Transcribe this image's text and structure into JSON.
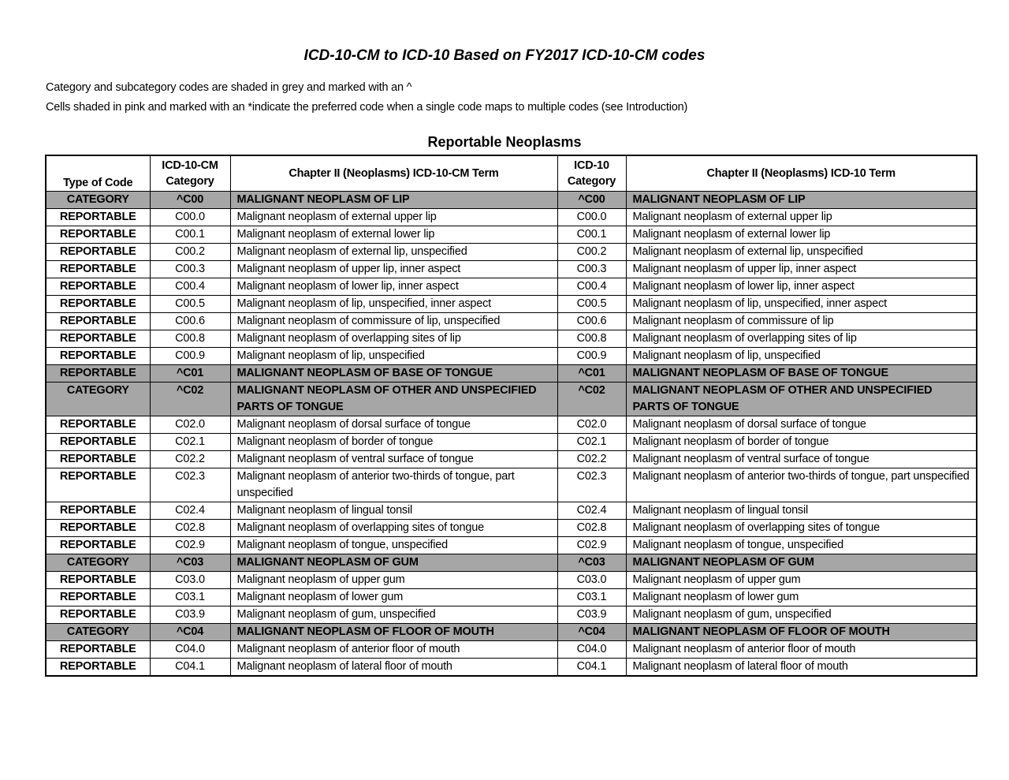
{
  "title": "ICD-10-CM to ICD-10 Based on FY2017 ICD-10-CM codes",
  "notes": [
    "Category and subcategory codes are shaded in grey and marked with an ^",
    "Cells shaded in pink and marked with an *indicate the preferred code when a single code maps to multiple codes (see Introduction)"
  ],
  "table_title": "Reportable Neoplasms",
  "colors": {
    "grey": "#a6a6a6"
  },
  "columns": [
    "Type of Code",
    "ICD-10-CM Category",
    "Chapter II (Neoplasms) ICD-10-CM Term",
    "ICD-10 Category",
    "Chapter II (Neoplasms) ICD-10 Term"
  ],
  "rows": [
    {
      "grey": true,
      "cells": [
        "CATEGORY",
        "^C00",
        "MALIGNANT NEOPLASM OF LIP",
        "^C00",
        "MALIGNANT NEOPLASM OF LIP"
      ]
    },
    {
      "cells": [
        "REPORTABLE",
        "C00.0",
        "Malignant neoplasm of external upper lip",
        "C00.0",
        "Malignant neoplasm of external upper lip"
      ]
    },
    {
      "cells": [
        "REPORTABLE",
        "C00.1",
        "Malignant neoplasm of external lower lip",
        "C00.1",
        "Malignant neoplasm of external lower lip"
      ]
    },
    {
      "cells": [
        "REPORTABLE",
        "C00.2",
        "Malignant neoplasm of external lip, unspecified",
        "C00.2",
        "Malignant neoplasm of external lip, unspecified"
      ]
    },
    {
      "cells": [
        "REPORTABLE",
        "C00.3",
        "Malignant neoplasm of upper lip, inner aspect",
        "C00.3",
        "Malignant neoplasm of upper lip, inner aspect"
      ]
    },
    {
      "cells": [
        "REPORTABLE",
        "C00.4",
        "Malignant neoplasm of lower lip, inner aspect",
        "C00.4",
        "Malignant neoplasm of lower lip, inner aspect"
      ]
    },
    {
      "cells": [
        "REPORTABLE",
        "C00.5",
        "Malignant neoplasm of lip, unspecified, inner aspect",
        "C00.5",
        "Malignant neoplasm of lip, unspecified, inner aspect"
      ]
    },
    {
      "cells": [
        "REPORTABLE",
        "C00.6",
        "Malignant neoplasm of commissure of lip, unspecified",
        "C00.6",
        "Malignant neoplasm of commissure of lip"
      ]
    },
    {
      "cells": [
        "REPORTABLE",
        "C00.8",
        "Malignant neoplasm of overlapping sites of lip",
        "C00.8",
        "Malignant neoplasm of overlapping sites of lip"
      ]
    },
    {
      "cells": [
        "REPORTABLE",
        "C00.9",
        "Malignant neoplasm of lip, unspecified",
        "C00.9",
        "Malignant neoplasm of lip, unspecified"
      ]
    },
    {
      "grey": true,
      "cells": [
        "REPORTABLE",
        "^C01",
        "MALIGNANT NEOPLASM OF BASE OF TONGUE",
        "^C01",
        "MALIGNANT NEOPLASM OF BASE OF TONGUE"
      ]
    },
    {
      "grey": true,
      "cells": [
        "CATEGORY",
        "^C02",
        "MALIGNANT NEOPLASM OF OTHER AND UNSPECIFIED PARTS OF TONGUE",
        "^C02",
        "MALIGNANT NEOPLASM OF OTHER AND UNSPECIFIED PARTS OF TONGUE"
      ]
    },
    {
      "cells": [
        "REPORTABLE",
        "C02.0",
        "Malignant neoplasm of dorsal surface of tongue",
        "C02.0",
        "Malignant neoplasm of dorsal surface of tongue"
      ]
    },
    {
      "cells": [
        "REPORTABLE",
        "C02.1",
        "Malignant neoplasm of border of tongue",
        "C02.1",
        "Malignant neoplasm of border of tongue"
      ]
    },
    {
      "cells": [
        "REPORTABLE",
        "C02.2",
        "Malignant neoplasm of ventral surface of tongue",
        "C02.2",
        "Malignant neoplasm of ventral surface of tongue"
      ]
    },
    {
      "cells": [
        "REPORTABLE",
        "C02.3",
        "Malignant neoplasm of anterior two-thirds of tongue, part unspecified",
        "C02.3",
        "Malignant neoplasm of anterior two-thirds of tongue, part unspecified"
      ]
    },
    {
      "cells": [
        "REPORTABLE",
        "C02.4",
        "Malignant neoplasm of lingual tonsil",
        "C02.4",
        "Malignant neoplasm of lingual tonsil"
      ]
    },
    {
      "cells": [
        "REPORTABLE",
        "C02.8",
        "Malignant neoplasm of overlapping sites of tongue",
        "C02.8",
        "Malignant neoplasm of overlapping sites of tongue"
      ]
    },
    {
      "cells": [
        "REPORTABLE",
        "C02.9",
        "Malignant neoplasm of tongue, unspecified",
        "C02.9",
        "Malignant neoplasm of tongue, unspecified"
      ]
    },
    {
      "grey": true,
      "cells": [
        "CATEGORY",
        "^C03",
        "MALIGNANT NEOPLASM OF GUM",
        "^C03",
        "MALIGNANT NEOPLASM OF GUM"
      ]
    },
    {
      "cells": [
        "REPORTABLE",
        "C03.0",
        "Malignant neoplasm of upper gum",
        "C03.0",
        "Malignant neoplasm of upper gum"
      ]
    },
    {
      "cells": [
        "REPORTABLE",
        "C03.1",
        "Malignant neoplasm of lower gum",
        "C03.1",
        "Malignant neoplasm of lower gum"
      ]
    },
    {
      "cells": [
        "REPORTABLE",
        "C03.9",
        "Malignant neoplasm of gum, unspecified",
        "C03.9",
        "Malignant neoplasm of gum, unspecified"
      ]
    },
    {
      "grey": true,
      "cells": [
        "CATEGORY",
        "^C04",
        "MALIGNANT NEOPLASM OF FLOOR OF MOUTH",
        "^C04",
        "MALIGNANT NEOPLASM OF FLOOR OF MOUTH"
      ]
    },
    {
      "cells": [
        "REPORTABLE",
        "C04.0",
        "Malignant neoplasm of anterior floor of mouth",
        "C04.0",
        "Malignant neoplasm of anterior floor of mouth"
      ]
    },
    {
      "cells": [
        "REPORTABLE",
        "C04.1",
        "Malignant neoplasm of lateral floor of mouth",
        "C04.1",
        "Malignant neoplasm of lateral floor of mouth"
      ]
    }
  ]
}
